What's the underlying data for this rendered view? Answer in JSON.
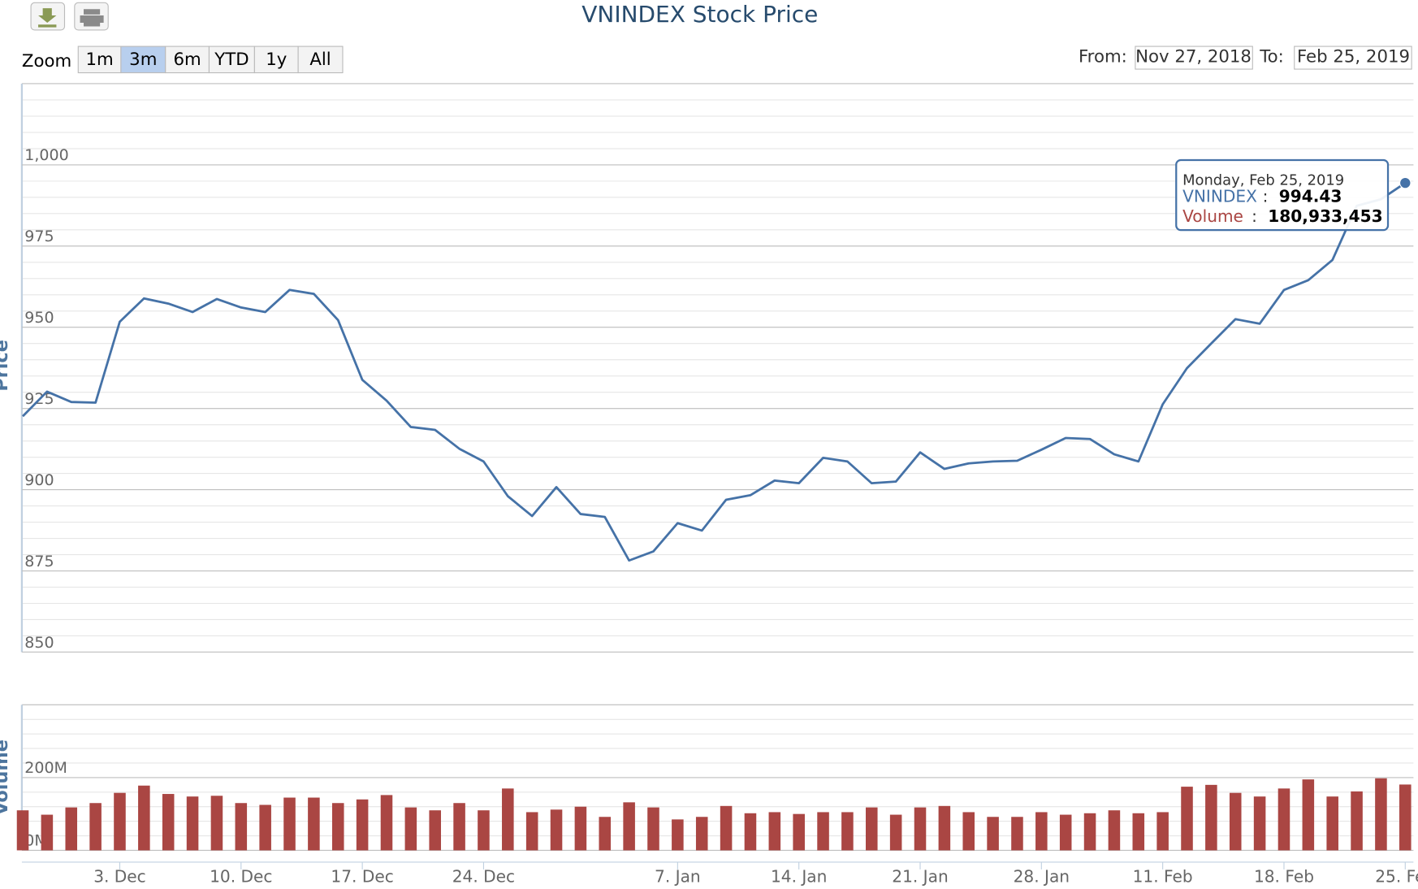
{
  "chart_data": {
    "type": "stock",
    "title": "VNINDEX Stock Price",
    "range_selector": {
      "label": "Zoom",
      "buttons": [
        "1m",
        "3m",
        "6m",
        "YTD",
        "1y",
        "All"
      ],
      "selected": 1
    },
    "date_range": {
      "from_label": "From:",
      "from": "Nov 27, 2018",
      "to_label": "To:",
      "to": "Feb 25, 2019"
    },
    "x": [
      "2018-11-27",
      "2018-11-28",
      "2018-11-29",
      "2018-11-30",
      "2018-12-03",
      "2018-12-04",
      "2018-12-05",
      "2018-12-06",
      "2018-12-07",
      "2018-12-10",
      "2018-12-11",
      "2018-12-12",
      "2018-12-13",
      "2018-12-14",
      "2018-12-17",
      "2018-12-18",
      "2018-12-19",
      "2018-12-20",
      "2018-12-21",
      "2018-12-24",
      "2018-12-25",
      "2018-12-26",
      "2018-12-27",
      "2018-12-28",
      "2019-01-02",
      "2019-01-03",
      "2019-01-04",
      "2019-01-07",
      "2019-01-08",
      "2019-01-09",
      "2019-01-10",
      "2019-01-11",
      "2019-01-14",
      "2019-01-15",
      "2019-01-16",
      "2019-01-17",
      "2019-01-18",
      "2019-01-21",
      "2019-01-22",
      "2019-01-23",
      "2019-01-24",
      "2019-01-25",
      "2019-01-28",
      "2019-01-29",
      "2019-01-30",
      "2019-01-31",
      "2019-02-01",
      "2019-02-11",
      "2019-02-12",
      "2019-02-13",
      "2019-02-14",
      "2019-02-15",
      "2019-02-18",
      "2019-02-19",
      "2019-02-20",
      "2019-02-21",
      "2019-02-22",
      "2019-02-25"
    ],
    "xticks": [
      {
        "value": "2018-12-03",
        "label": "3. Dec"
      },
      {
        "value": "2018-12-10",
        "label": "10. Dec"
      },
      {
        "value": "2018-12-17",
        "label": "17. Dec"
      },
      {
        "value": "2018-12-24",
        "label": "24. Dec"
      },
      {
        "value": "2019-01-07",
        "label": "7. Jan"
      },
      {
        "value": "2019-01-14",
        "label": "14. Jan"
      },
      {
        "value": "2019-01-21",
        "label": "21. Jan"
      },
      {
        "value": "2019-01-28",
        "label": "28. Jan"
      },
      {
        "value": "2019-02-11",
        "label": "11. Feb"
      },
      {
        "value": "2019-02-18",
        "label": "18. Feb"
      },
      {
        "value": "2019-02-25",
        "label": "25. Feb"
      }
    ],
    "y_label": "Price",
    "ylim": [
      850,
      1025
    ],
    "yticks": [
      850,
      875,
      900,
      925,
      950,
      975,
      {
        "value": 1000,
        "label": "1,000"
      }
    ],
    "y2_label": "Volume",
    "y2lim": [
      0,
      400000000
    ],
    "y2ticks": [
      {
        "value": 0,
        "label": "0M"
      },
      {
        "value": 200000000,
        "label": "200M"
      }
    ],
    "grid": true,
    "minor_tick_interval": 5,
    "series": [
      {
        "name": "VNINDEX",
        "type": "line",
        "color": "#4572a7",
        "values": [
          922.6,
          930.2,
          927,
          926.8,
          951.7,
          958.9,
          957.3,
          954.7,
          958.7,
          956.1,
          954.7,
          961.5,
          960.3,
          952.2,
          933.8,
          927.4,
          919.3,
          918.4,
          912.6,
          908.7,
          898,
          891.9,
          900.8,
          892.5,
          891.6,
          878.2,
          881,
          889.7,
          887.4,
          896.9,
          898.3,
          902.8,
          902,
          909.8,
          908.7,
          902,
          902.5,
          911.5,
          906.4,
          908.1,
          908.7,
          908.9,
          912.3,
          915.9,
          915.6,
          910.9,
          908.7,
          926.3,
          937.4,
          945,
          952.5,
          951.1,
          961.5,
          964.5,
          970.7,
          987.4,
          989.4,
          994.43
        ]
      },
      {
        "name": "Volume",
        "type": "column",
        "axis": "y2",
        "color": "#aa4643",
        "values": [
          110000000,
          98000000,
          118000000,
          130000000,
          158000000,
          178000000,
          155000000,
          148000000,
          150000000,
          130000000,
          125000000,
          145000000,
          145000000,
          130000000,
          140000000,
          152000000,
          118000000,
          110000000,
          130000000,
          110000000,
          170000000,
          105000000,
          112000000,
          120000000,
          92000000,
          132000000,
          118000000,
          85000000,
          92000000,
          122000000,
          102000000,
          105000000,
          100000000,
          105000000,
          105000000,
          118000000,
          98000000,
          118000000,
          122000000,
          105000000,
          92000000,
          92000000,
          105000000,
          98000000,
          102000000,
          110000000,
          102000000,
          105000000,
          175000000,
          180000000,
          158000000,
          148000000,
          170000000,
          195000000,
          148000000,
          162000000,
          198000000,
          180933453
        ],
        "value_labels": [
          null,
          null,
          null,
          null,
          null,
          null,
          null,
          null,
          null,
          null,
          null,
          null,
          null,
          null,
          null,
          null,
          null,
          null,
          null,
          null,
          null,
          null,
          null,
          null,
          null,
          null,
          null,
          null,
          null,
          null,
          null,
          null,
          null,
          null,
          null,
          null,
          null,
          null,
          null,
          null,
          null,
          null,
          null,
          null,
          null,
          null,
          null,
          null,
          null,
          null,
          null,
          null,
          null,
          null,
          null,
          null,
          null,
          "180,933,453"
        ]
      }
    ],
    "tooltip": {
      "date": "Monday, Feb 25, 2019",
      "separator": ":"
    }
  }
}
